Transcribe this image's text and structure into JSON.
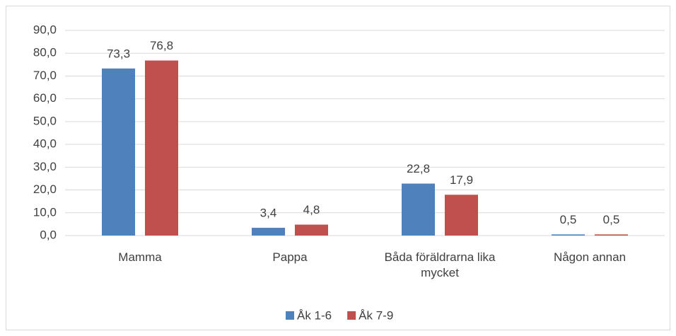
{
  "chart_data": {
    "type": "bar",
    "categories": [
      "Mamma",
      "Pappa",
      "Båda föräldrarna lika mycket",
      "Någon annan"
    ],
    "series": [
      {
        "name": "Åk 1-6",
        "color": "#4f81bd",
        "values": [
          73.3,
          3.4,
          22.8,
          0.5
        ],
        "value_labels": [
          "73,3",
          "3,4",
          "22,8",
          "0,5"
        ]
      },
      {
        "name": "Åk 7-9",
        "color": "#c0504d",
        "values": [
          76.8,
          4.8,
          17.9,
          0.5
        ],
        "value_labels": [
          "76,8",
          "4,8",
          "17,9",
          "0,5"
        ]
      }
    ],
    "ylim": [
      0,
      90
    ],
    "yticks": [
      {
        "value": 0,
        "label": "0,0"
      },
      {
        "value": 10,
        "label": "10,0"
      },
      {
        "value": 20,
        "label": "20,0"
      },
      {
        "value": 30,
        "label": "30,0"
      },
      {
        "value": 40,
        "label": "40,0"
      },
      {
        "value": 50,
        "label": "50,0"
      },
      {
        "value": 60,
        "label": "60,0"
      },
      {
        "value": 70,
        "label": "70,0"
      },
      {
        "value": 80,
        "label": "80,0"
      },
      {
        "value": 90,
        "label": "90,0"
      }
    ],
    "grid": true,
    "legend": "bottom"
  }
}
